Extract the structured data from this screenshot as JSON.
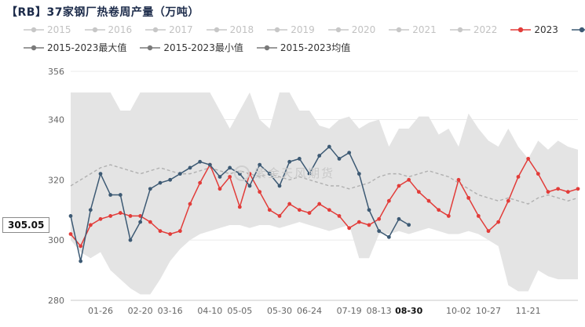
{
  "title": "【RB】37家钢厂热卷周产量（万吨）",
  "watermark": "紫金天风期货",
  "latest_label": "305.05",
  "colors": {
    "red": "#e23c39",
    "navy": "#3d5a74",
    "band": "#e4e4e4",
    "mean": "#b0b0b0",
    "disabled": "#c7c7c7",
    "stat": "#7a7a7a",
    "grid": "#ebebeb",
    "axis": "#c9c9c9",
    "tick_text": "#666666",
    "tick_text_bold": "#111111"
  },
  "legend": {
    "row1": [
      {
        "label": "2015",
        "color": "#c7c7c7",
        "active": false
      },
      {
        "label": "2016",
        "color": "#c7c7c7",
        "active": false
      },
      {
        "label": "2017",
        "color": "#c7c7c7",
        "active": false
      },
      {
        "label": "2018",
        "color": "#c7c7c7",
        "active": false
      },
      {
        "label": "2019",
        "color": "#c7c7c7",
        "active": false
      },
      {
        "label": "2020",
        "color": "#c7c7c7",
        "active": false
      },
      {
        "label": "2021",
        "color": "#c7c7c7",
        "active": false
      },
      {
        "label": "2022",
        "color": "#c7c7c7",
        "active": false
      },
      {
        "label": "2023",
        "color": "#e23c39",
        "active": true
      },
      {
        "label": "2024",
        "color": "#3d5a74",
        "active": true
      }
    ],
    "row2": [
      {
        "label": "2015-2023最大值",
        "color": "#7a7a7a",
        "active": true
      },
      {
        "label": "2015-2023最小值",
        "color": "#7a7a7a",
        "active": true
      },
      {
        "label": "2015-2023均值",
        "color": "#7a7a7a",
        "active": true
      }
    ]
  },
  "chart_data": {
    "type": "line",
    "title": "【RB】37家钢厂热卷周产量（万吨）",
    "ylabel": "",
    "xlabel": "",
    "ylim": [
      280,
      356
    ],
    "y_ticks": [
      280,
      300,
      320,
      340,
      356
    ],
    "x_tick_labels": [
      {
        "index": 3,
        "label": "01-26",
        "bold": false
      },
      {
        "index": 7,
        "label": "02-20",
        "bold": false
      },
      {
        "index": 10,
        "label": "03-16",
        "bold": false
      },
      {
        "index": 14,
        "label": "04-10",
        "bold": false
      },
      {
        "index": 17,
        "label": "05-05",
        "bold": false
      },
      {
        "index": 21,
        "label": "05-30",
        "bold": false
      },
      {
        "index": 24,
        "label": "06-24",
        "bold": false
      },
      {
        "index": 28,
        "label": "07-19",
        "bold": false
      },
      {
        "index": 31,
        "label": "08-13",
        "bold": false
      },
      {
        "index": 34,
        "label": "08-30",
        "bold": true
      },
      {
        "index": 39,
        "label": "10-02",
        "bold": false
      },
      {
        "index": 42,
        "label": "10-27",
        "bold": false
      },
      {
        "index": 46,
        "label": "11-21",
        "bold": false
      }
    ],
    "band": {
      "name_max": "2015-2023最大值",
      "name_min": "2015-2023最小值",
      "max": [
        349,
        349,
        349,
        349,
        349,
        343,
        343,
        349,
        349,
        349,
        349,
        349,
        349,
        349,
        349,
        343,
        337,
        343,
        349,
        340,
        337,
        349,
        349,
        343,
        343,
        338,
        337,
        340,
        341,
        337,
        339,
        340,
        331,
        337,
        337,
        341,
        341,
        335,
        337,
        331,
        342,
        337,
        333,
        331,
        337,
        331,
        327,
        333,
        330,
        333,
        331,
        330
      ],
      "min": [
        300,
        296,
        294,
        296,
        290,
        287,
        284,
        282,
        282,
        287,
        293,
        297,
        300,
        302,
        303,
        304,
        305,
        305,
        304,
        305,
        305,
        304,
        305,
        306,
        305,
        304,
        303,
        304,
        305,
        294,
        294,
        302,
        302,
        303,
        302,
        303,
        304,
        303,
        302,
        302,
        303,
        302,
        300,
        298,
        285,
        283,
        283,
        290,
        288,
        287,
        287,
        287
      ]
    },
    "mean": {
      "name": "2015-2023均值",
      "values": [
        318,
        320,
        322,
        324,
        325,
        324,
        323,
        322,
        323,
        324,
        323,
        322,
        322,
        323,
        324,
        323,
        322,
        323,
        322,
        321,
        322,
        321,
        320,
        321,
        320,
        319,
        318,
        318,
        317,
        318,
        319,
        321,
        322,
        322,
        321,
        322,
        323,
        322,
        321,
        319,
        317,
        315,
        314,
        313,
        314,
        313,
        312,
        314,
        315,
        314,
        313,
        314
      ]
    },
    "series": [
      {
        "name": "2023",
        "color": "#e23c39",
        "values": [
          302,
          298,
          305,
          307,
          308,
          309,
          308,
          308,
          306,
          303,
          302,
          303,
          312,
          319,
          325,
          317,
          321,
          311,
          322,
          316,
          310,
          308,
          312,
          310,
          309,
          312,
          310,
          308,
          304,
          306,
          305,
          307,
          313,
          318,
          320,
          316,
          313,
          310,
          308,
          320,
          314,
          308,
          303,
          306,
          313,
          321,
          327,
          322,
          316,
          317,
          316,
          317
        ]
      },
      {
        "name": "2024",
        "color": "#3d5a74",
        "values": [
          308,
          293,
          310,
          322,
          315,
          315,
          300,
          306,
          317,
          319,
          320,
          322,
          324,
          326,
          325,
          321,
          324,
          322,
          318,
          325,
          322,
          318,
          326,
          327,
          322,
          328,
          331,
          327,
          329,
          322,
          310,
          303,
          301,
          307,
          305.05
        ]
      }
    ],
    "latest": {
      "series": "2024",
      "value": 305.05
    }
  }
}
